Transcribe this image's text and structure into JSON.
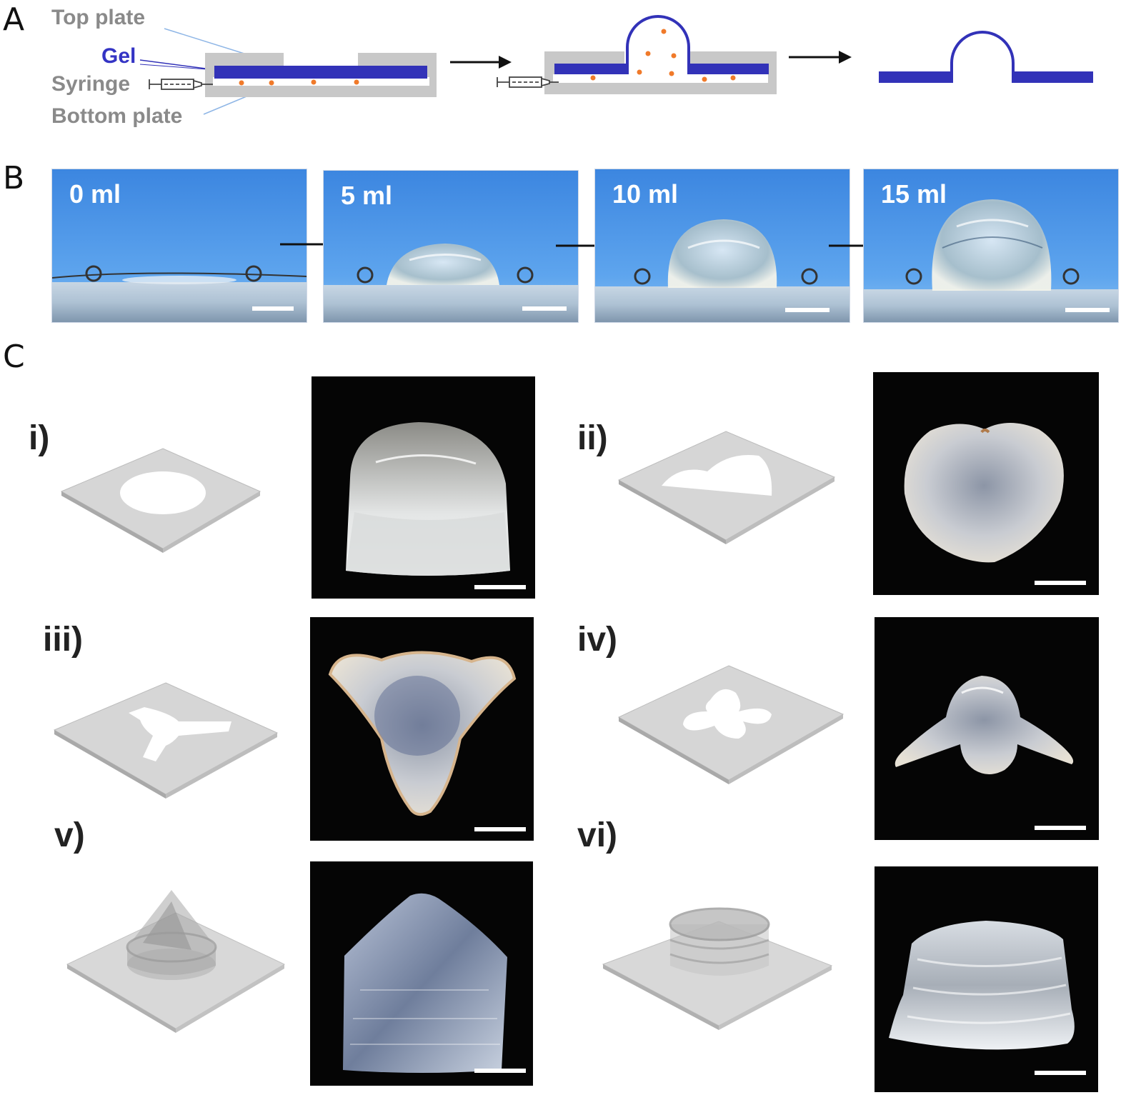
{
  "panels": {
    "a_letter": "A",
    "b_letter": "B",
    "c_letter": "C"
  },
  "panel_a": {
    "labels": {
      "top_plate": "Top plate",
      "gel": "Gel",
      "syringe": "Syringe",
      "bottom_plate": "Bottom plate"
    }
  },
  "panel_b": {
    "volumes": [
      "0 ml",
      "5 ml",
      "10 ml",
      "15 ml"
    ]
  },
  "panel_c": {
    "items": [
      "i)",
      "ii)",
      "iii)",
      "iv)",
      "v)",
      "vi)"
    ]
  },
  "colors": {
    "gel": "#3232b8",
    "plate": "#c8c8c8",
    "bead": "#f07a2a",
    "sky": "#4a92e4"
  }
}
